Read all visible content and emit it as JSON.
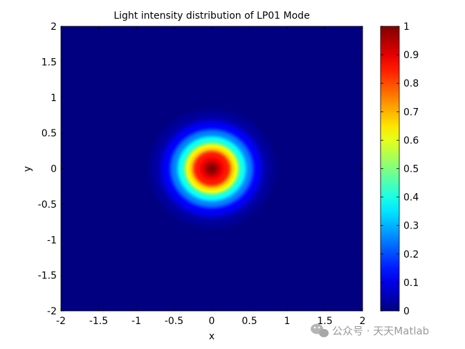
{
  "chart_data": {
    "type": "heatmap",
    "title": "Light intensity distribution of LP01 Mode",
    "xlabel": "x",
    "ylabel": "y",
    "xlim": [
      -2,
      2
    ],
    "ylim": [
      -2,
      2
    ],
    "x_ticks": [
      -2,
      -1.5,
      -1,
      -0.5,
      0,
      0.5,
      1,
      1.5,
      2
    ],
    "x_tick_labels": [
      "-2",
      "-1.5",
      "-1",
      "-0.5",
      "0",
      "0.5",
      "1",
      "1.5",
      "2"
    ],
    "y_ticks": [
      2,
      1.5,
      1,
      0.5,
      0,
      -0.5,
      -1,
      -1.5,
      -2
    ],
    "y_tick_labels": [
      "2",
      "1.5",
      "1",
      "0.5",
      "0",
      "-0.5",
      "-1",
      "-1.5",
      "-2"
    ],
    "colormap": "jet",
    "clim": [
      0,
      1
    ],
    "colorbar_ticks": [
      1,
      0.9,
      0.8,
      0.7,
      0.6,
      0.5,
      0.4,
      0.3,
      0.2,
      0.1,
      0
    ],
    "colorbar_tick_labels": [
      "1",
      "0.9",
      "0.8",
      "0.7",
      "0.6",
      "0.5",
      "0.4",
      "0.3",
      "0.2",
      "0.1",
      "0"
    ],
    "intensity_peak": 1,
    "intensity_center": [
      0,
      0
    ],
    "intensity_profile": [
      {
        "r": 0,
        "value": 1.0
      },
      {
        "r": 0.2,
        "value": 0.85
      },
      {
        "r": 0.3,
        "value": 0.65
      },
      {
        "r": 0.4,
        "value": 0.4
      },
      {
        "r": 0.5,
        "value": 0.25
      },
      {
        "r": 0.6,
        "value": 0.12
      },
      {
        "r": 0.75,
        "value": 0.03
      },
      {
        "r": 0.9,
        "value": 0.0
      }
    ],
    "grid": false
  },
  "watermark": {
    "text": "公众号 · 天天Matlab",
    "icon": "wechat-icon"
  }
}
